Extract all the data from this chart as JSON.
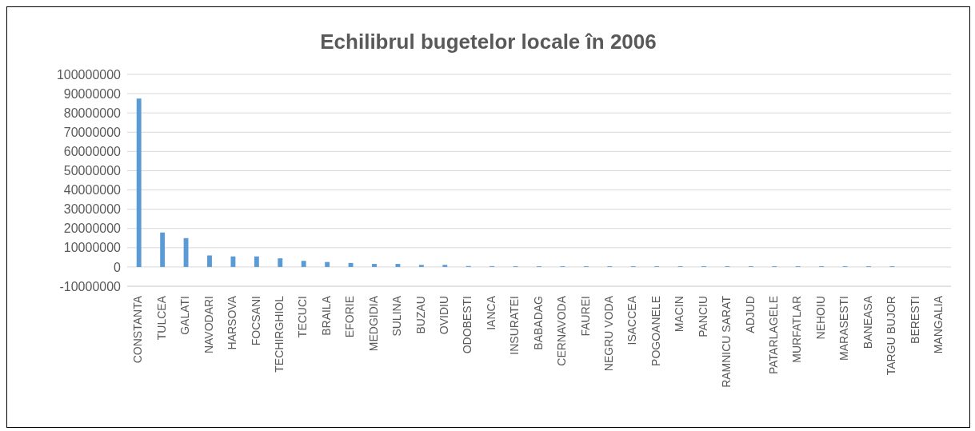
{
  "chart_data": {
    "type": "bar",
    "title": "Echilibrul bugetelor locale în 2006",
    "categories": [
      "CONSTANTA",
      "TULCEA",
      "GALATI",
      "NAVODARI",
      "HARSOVA",
      "FOCSANI",
      "TECHIRGHIOL",
      "TECUCI",
      "BRAILA",
      "EFORIE",
      "MEDGIDIA",
      "SULINA",
      "BUZAU",
      "OVIDIU",
      "ODOBESTI",
      "IANCA",
      "INSURATEI",
      "BABADAG",
      "CERNAVODA",
      "FAUREI",
      "NEGRU VODA",
      "ISACCEA",
      "POGOANELE",
      "MACIN",
      "PANCIU",
      "RAMNICU SARAT",
      "ADJUD",
      "PATARLAGELE",
      "MURFATLAR",
      "NEHOIU",
      "MARASESTI",
      "BANEASA",
      "TARGU BUJOR",
      "BERESTI",
      "MANGALIA"
    ],
    "values": [
      87400000,
      17900000,
      15000000,
      6000000,
      5500000,
      5500000,
      4500000,
      3200000,
      2600000,
      2100000,
      1600000,
      1600000,
      1100000,
      1100000,
      500000,
      450000,
      400000,
      400000,
      400000,
      400000,
      400000,
      400000,
      400000,
      400000,
      400000,
      400000,
      400000,
      400000,
      400000,
      400000,
      400000,
      400000,
      400000,
      0,
      0
    ],
    "color": "#5b9bd5",
    "ylim": [
      -10000000,
      100000000
    ],
    "yticks": [
      -10000000,
      0,
      10000000,
      20000000,
      30000000,
      40000000,
      50000000,
      60000000,
      70000000,
      80000000,
      90000000,
      100000000
    ],
    "grid": "y"
  }
}
